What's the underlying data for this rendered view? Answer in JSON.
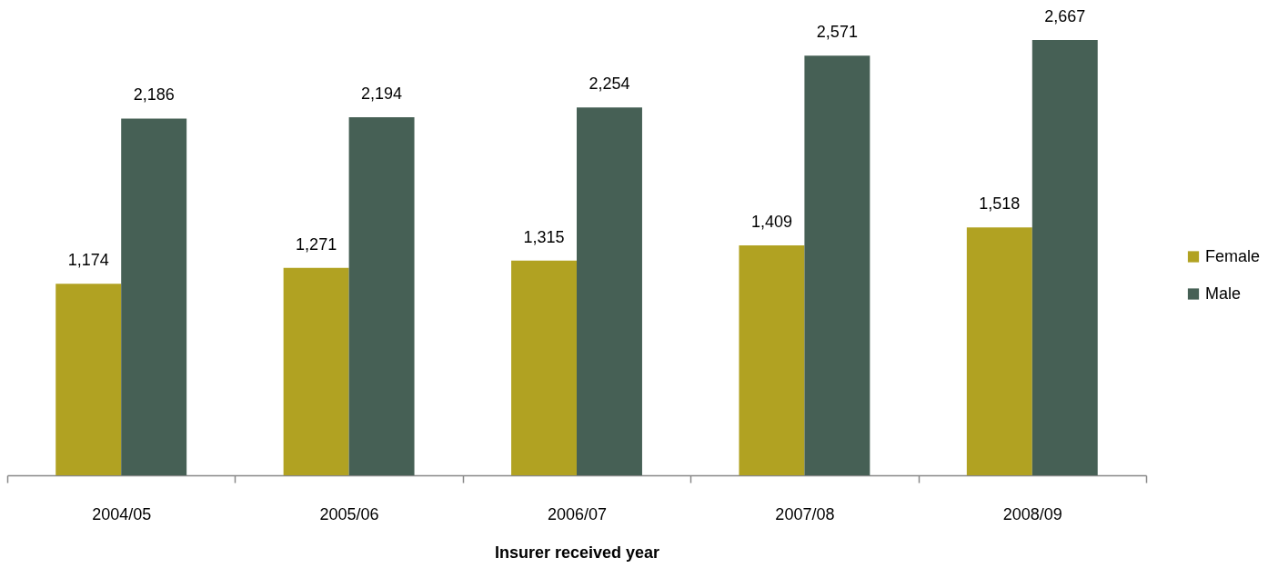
{
  "chart_data": {
    "type": "bar",
    "xlabel": "Insurer received year",
    "categories": [
      "2004/05",
      "2005/06",
      "2006/07",
      "2007/08",
      "2008/09"
    ],
    "series": [
      {
        "name": "Female",
        "color": "#b1a222",
        "values": [
          1174,
          1271,
          1315,
          1409,
          1518
        ],
        "value_labels": [
          "1,174",
          "1,271",
          "1,315",
          "1,409",
          "1,518"
        ]
      },
      {
        "name": "Male",
        "color": "#466055",
        "values": [
          2186,
          2194,
          2254,
          2571,
          2667
        ],
        "value_labels": [
          "2,186",
          "2,194",
          "2,254",
          "2,571",
          "2,667"
        ]
      }
    ],
    "legend": "right"
  }
}
